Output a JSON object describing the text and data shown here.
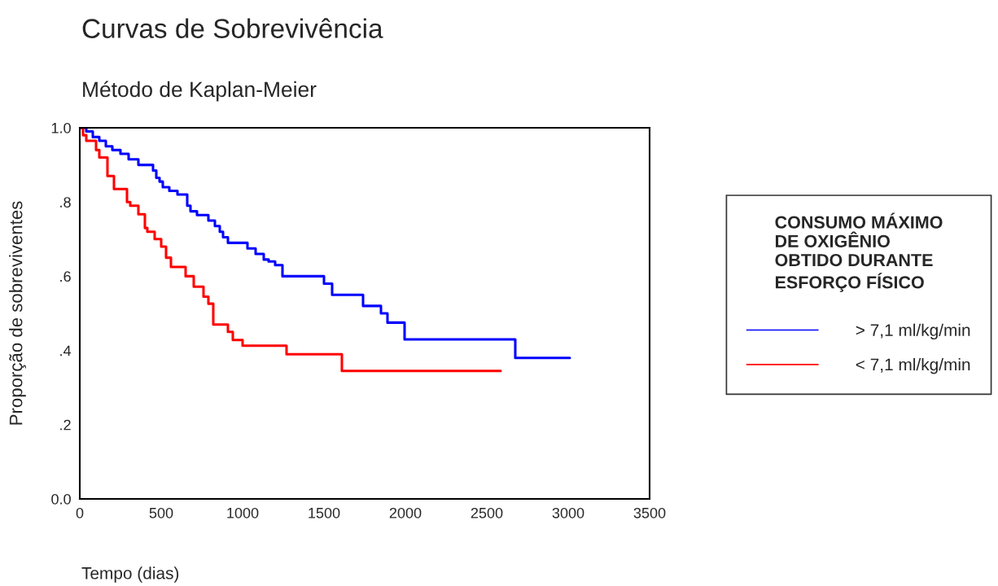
{
  "chart_data": {
    "type": "step",
    "title": "Curvas de Sobrevivência",
    "subtitle": "Método de Kaplan-Meier",
    "xlabel": "Tempo (dias)",
    "ylabel": "Proporção de sobreviventes",
    "legend_title": "CONSUMO MÁXIMO\nDE OXIGÊNIO\nOBTIDO DURANTE\nESFORÇO FÍSICO",
    "series": [
      {
        "name": "> 7,1 ml/kg/min",
        "color": "#0000ff",
        "x": [
          0,
          40,
          80,
          120,
          160,
          200,
          250,
          300,
          360,
          450,
          470,
          490,
          510,
          550,
          600,
          660,
          680,
          720,
          790,
          830,
          860,
          880,
          910,
          1030,
          1080,
          1130,
          1160,
          1200,
          1245,
          1500,
          1550,
          1595,
          1740,
          1850,
          1890,
          1995,
          2675,
          3010
        ],
        "values": [
          1.0,
          0.99,
          0.975,
          0.965,
          0.95,
          0.94,
          0.93,
          0.915,
          0.9,
          0.885,
          0.865,
          0.855,
          0.84,
          0.83,
          0.82,
          0.79,
          0.775,
          0.765,
          0.75,
          0.735,
          0.72,
          0.705,
          0.69,
          0.675,
          0.66,
          0.645,
          0.64,
          0.63,
          0.6,
          0.58,
          0.55,
          0.55,
          0.52,
          0.5,
          0.475,
          0.43,
          0.38,
          0.38
        ]
      },
      {
        "name": "< 7,1 ml/kg/min",
        "color": "#ff0000",
        "x": [
          0,
          20,
          40,
          100,
          120,
          170,
          210,
          290,
          310,
          360,
          400,
          415,
          460,
          500,
          530,
          560,
          650,
          700,
          760,
          790,
          820,
          910,
          940,
          1000,
          1270,
          1610,
          2585
        ],
        "values": [
          1.0,
          0.98,
          0.965,
          0.94,
          0.92,
          0.87,
          0.835,
          0.8,
          0.79,
          0.767,
          0.73,
          0.72,
          0.7,
          0.68,
          0.65,
          0.625,
          0.6,
          0.572,
          0.545,
          0.526,
          0.47,
          0.45,
          0.428,
          0.413,
          0.39,
          0.345,
          0.345
        ]
      }
    ],
    "xlim": [
      0,
      3500
    ],
    "xticks": [
      0,
      500,
      1000,
      1500,
      2000,
      2500,
      3000,
      3500
    ],
    "ylim": [
      0,
      1.0
    ],
    "yticks": [
      {
        "value": 0.0,
        "label": "0.0"
      },
      {
        "value": 0.2,
        "label": ".2"
      },
      {
        "value": 0.4,
        "label": ".4"
      },
      {
        "value": 0.6,
        "label": ".6"
      },
      {
        "value": 0.8,
        "label": ".8"
      },
      {
        "value": 1.0,
        "label": "1.0"
      }
    ],
    "legend": "right",
    "grid": false
  }
}
